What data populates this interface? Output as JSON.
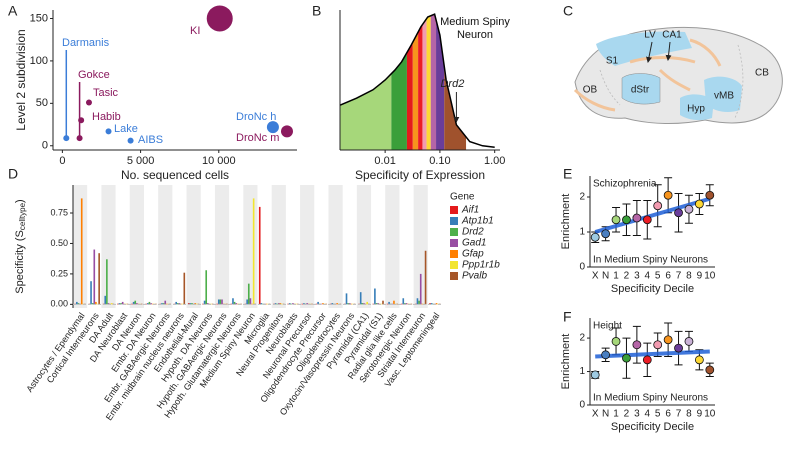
{
  "chart_data": [
    {
      "panel": "A",
      "type": "scatter",
      "xlabel": "No. sequenced cells",
      "ylabel": "Level 2 subdivision",
      "xlim": [
        -600,
        15000
      ],
      "ylim": [
        -5,
        160
      ],
      "xticks": [
        0,
        {
          "value": 5000,
          "label": "5 000"
        },
        {
          "value": 10000,
          "label": "10 000"
        }
      ],
      "yticks": [
        0,
        50,
        100,
        150
      ],
      "labels": [
        "Darmanis",
        "Gokce",
        "Habib",
        "Tasic",
        "Lake",
        "AIBS",
        "KI",
        "DroNc h",
        "DroNc m"
      ],
      "x": [
        250,
        1100,
        1200,
        1700,
        2950,
        4360,
        10060,
        13460,
        14360
      ],
      "values": [
        9,
        9,
        30,
        51,
        17,
        6,
        150,
        22,
        17
      ],
      "sizes": [
        3,
        3,
        3,
        3,
        3,
        3,
        13,
        6,
        6
      ],
      "colors": [
        "#3b7dd8",
        "#8b1a5e",
        "#8b1a5e",
        "#8b1a5e",
        "#3b7dd8",
        "#3b7dd8",
        "#8b1a5e",
        "#3b7dd8",
        "#8b1a5e"
      ]
    },
    {
      "panel": "B",
      "type": "density",
      "title": "Medium Spiny Neuron",
      "xlabel": "Specificity of Expression",
      "xscale": "log",
      "xlim": [
        0.0015,
        1.25
      ],
      "ylim": [
        0,
        1
      ],
      "xticks": [
        0.01,
        {
          "value": 0.1,
          "label": "0.10"
        },
        {
          "value": 1,
          "label": "1.00"
        }
      ],
      "x": [
        0.0015,
        0.003,
        0.006,
        0.01,
        0.015,
        0.02,
        0.03,
        0.045,
        0.06,
        0.08,
        0.1,
        0.13,
        0.2,
        0.35,
        0.6,
        1.0
      ],
      "density": [
        0.32,
        0.37,
        0.43,
        0.5,
        0.57,
        0.63,
        0.75,
        0.88,
        0.95,
        0.97,
        0.82,
        0.5,
        0.18,
        0.06,
        0.03,
        0.02
      ],
      "deciles": [
        0.0015,
        0.013,
        0.025,
        0.032,
        0.04,
        0.048,
        0.057,
        0.068,
        0.085,
        0.12,
        0.3
      ],
      "decile_colors": [
        "#a6d77a",
        "#3a9f3a",
        "#e31a1c",
        "#f7941d",
        "#ec1c24",
        "#f29bb0",
        "#fdd835",
        "#b565a7",
        "#6a3d9a",
        "#a0522d"
      ],
      "annotation": {
        "text": "Drd2",
        "x": 0.2
      }
    },
    {
      "panel": "C",
      "type": "diagram",
      "labels": [
        "LV",
        "CA1",
        "S1",
        "dStr",
        "Hyp",
        "vMB",
        "OB",
        "CB"
      ]
    },
    {
      "panel": "D",
      "type": "bar",
      "ylabel": "Specificity (S",
      "ylabel_sub": "celltype",
      "ylabel_end": ")",
      "ylim": [
        -0.03,
        0.98
      ],
      "yticks": [
        {
          "value": 0,
          "label": "0.00"
        },
        0.25,
        {
          "value": 0.5,
          "label": "0.50"
        },
        0.75
      ],
      "legend_title": "Gene",
      "categories": [
        "Astrocytes / Ependymal",
        "Cortical Interneurons",
        "DA Adult",
        "DA Neuroblast",
        "DA Neuron",
        "Embr. DA Neuron",
        "Embr. GABAergic Neurons",
        "Embr. midbrain nucleus neurons",
        "Endothelial-Mural",
        "Hypoth. DA Neurons",
        "Hypoth. GABAergic Neurons",
        "Hypoth. Glutamatergic Neurons",
        "Medium Spiny Neuron",
        "Microglia",
        "Neural Progenitors",
        "Neuroblasts",
        "Neuronal Precursor",
        "Oligodendrocyte Precursor",
        "Oligodendrocytes",
        "Oxytocin/Vasopressin Neurons",
        "Pyramidal (CA1)",
        "Pyramidal (S1)",
        "Radial glia like cells",
        "Serotonergic Neuron",
        "Striatal Interneuron",
        "Vasc. Leptomeningeal"
      ],
      "series": [
        {
          "name": "Aif1",
          "color": "#e41a1c",
          "values": [
            0.005,
            0.005,
            0.005,
            0.005,
            0.005,
            0.005,
            0.005,
            0.005,
            0.01,
            0.005,
            0.005,
            0.005,
            0.005,
            0.8,
            0.005,
            0.005,
            0.005,
            0.005,
            0.005,
            0.005,
            0.005,
            0.005,
            0.005,
            0.005,
            0.005,
            0.01
          ]
        },
        {
          "name": "Atp1b1",
          "color": "#377eb8",
          "values": [
            0.02,
            0.19,
            0.07,
            0.01,
            0.02,
            0.01,
            0.01,
            0.02,
            0.01,
            0.03,
            0.04,
            0.05,
            0.04,
            0.01,
            0.01,
            0.01,
            0.01,
            0.02,
            0.01,
            0.09,
            0.1,
            0.13,
            0.02,
            0.05,
            0.05,
            0.01
          ]
        },
        {
          "name": "Drd2",
          "color": "#4daf4a",
          "values": [
            0.01,
            0.01,
            0.37,
            0.01,
            0.03,
            0.02,
            0.01,
            0.01,
            0.01,
            0.28,
            0.04,
            0.02,
            0.17,
            0.005,
            0.005,
            0.005,
            0.005,
            0.005,
            0.005,
            0.01,
            0.01,
            0.01,
            0.005,
            0.01,
            0.03,
            0.005
          ]
        },
        {
          "name": "Gad1",
          "color": "#984ea3",
          "values": [
            0.005,
            0.45,
            0.01,
            0.02,
            0.01,
            0.01,
            0.03,
            0.01,
            0.005,
            0.01,
            0.04,
            0.01,
            0.05,
            0.005,
            0.01,
            0.01,
            0.01,
            0.005,
            0.005,
            0.01,
            0.01,
            0.01,
            0.005,
            0.01,
            0.25,
            0.005
          ]
        },
        {
          "name": "Gfap",
          "color": "#ff7f00",
          "values": [
            0.87,
            0.02,
            0.005,
            0.005,
            0.005,
            0.005,
            0.005,
            0.005,
            0.01,
            0.005,
            0.005,
            0.005,
            0.005,
            0.005,
            0.01,
            0.005,
            0.005,
            0.01,
            0.01,
            0.005,
            0.005,
            0.005,
            0.03,
            0.005,
            0.005,
            0.01
          ]
        },
        {
          "name": "Ppp1r1b",
          "color": "#f2e530",
          "values": [
            0.005,
            0.005,
            0.01,
            0.005,
            0.005,
            0.005,
            0.005,
            0.005,
            0.005,
            0.005,
            0.005,
            0.005,
            0.87,
            0.005,
            0.005,
            0.005,
            0.005,
            0.005,
            0.005,
            0.005,
            0.02,
            0.005,
            0.005,
            0.005,
            0.005,
            0.005
          ]
        },
        {
          "name": "Pvalb",
          "color": "#a65628",
          "values": [
            0.005,
            0.42,
            0.005,
            0.005,
            0.005,
            0.005,
            0.005,
            0.26,
            0.005,
            0.005,
            0.005,
            0.005,
            0.005,
            0.005,
            0.005,
            0.005,
            0.005,
            0.005,
            0.005,
            0.005,
            0.005,
            0.03,
            0.005,
            0.005,
            0.44,
            0.005
          ]
        }
      ]
    },
    {
      "panel": "E",
      "type": "errorpoint",
      "title": "Schizophrenia",
      "subtitle": "In Medium Spiny Neurons",
      "xlabel": "Specificity Decile",
      "ylabel": "Enrichment",
      "ylim": [
        0,
        2.6
      ],
      "yticks": [
        0,
        1,
        2
      ],
      "categories": [
        "X",
        "N",
        "1",
        "2",
        "3",
        "4",
        "5",
        "6",
        "7",
        "8",
        "9",
        "10"
      ],
      "values": [
        0.85,
        0.95,
        1.35,
        1.35,
        1.4,
        1.35,
        1.75,
        2.05,
        1.55,
        1.65,
        1.8,
        2.05
      ],
      "errors": [
        0.15,
        0.2,
        0.35,
        0.45,
        0.5,
        0.55,
        0.6,
        0.5,
        0.55,
        0.4,
        0.3,
        0.3
      ],
      "colors": [
        "#9ecae1",
        "#4a7fc1",
        "#a6d77a",
        "#3a9f3a",
        "#b565a7",
        "#ec1c24",
        "#f29bb0",
        "#f7941d",
        "#6a3d9a",
        "#cab2d6",
        "#fdd835",
        "#a0522d"
      ],
      "trend": [
        1.0,
        1.95
      ],
      "trend_color": "#1f5fd6"
    },
    {
      "panel": "F",
      "type": "errorpoint",
      "title": "Height",
      "subtitle": "In Medium Spiny Neurons",
      "xlabel": "Specificity Decile",
      "ylabel": "Enrichment",
      "ylim": [
        0,
        2.6
      ],
      "yticks": [
        0,
        1,
        2
      ],
      "categories": [
        "X",
        "N",
        "1",
        "2",
        "3",
        "4",
        "5",
        "6",
        "7",
        "8",
        "9",
        "10"
      ],
      "values": [
        0.9,
        1.5,
        1.9,
        1.4,
        1.8,
        1.35,
        1.8,
        1.95,
        1.7,
        1.9,
        1.35,
        1.05
      ],
      "errors": [
        0.1,
        0.2,
        0.4,
        0.6,
        0.55,
        0.5,
        0.35,
        0.5,
        0.5,
        0.3,
        0.3,
        0.2
      ],
      "colors": [
        "#9ecae1",
        "#4a7fc1",
        "#a6d77a",
        "#3a9f3a",
        "#b565a7",
        "#ec1c24",
        "#f29bb0",
        "#f7941d",
        "#6a3d9a",
        "#cab2d6",
        "#fdd835",
        "#a0522d"
      ],
      "trend": [
        1.45,
        1.6
      ],
      "trend_color": "#1f5fd6"
    }
  ]
}
